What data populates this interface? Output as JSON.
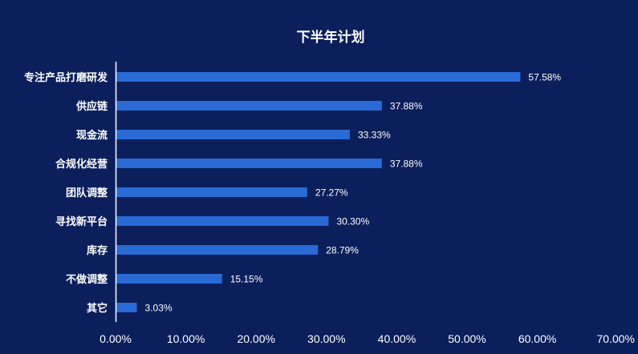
{
  "colors": {
    "background": "#0b1f5c",
    "bar": "#2a6ad4",
    "axis": "#ffffff",
    "text": "#ffffff"
  },
  "chart_data": {
    "type": "bar",
    "orientation": "horizontal",
    "title": "下半年计划",
    "categories": [
      "专注产品打磨研发",
      "供应链",
      "现金流",
      "合规化经营",
      "团队调整",
      "寻找新平台",
      "库存",
      "不做调整",
      "其它"
    ],
    "values": [
      57.58,
      37.88,
      33.33,
      37.88,
      27.27,
      30.3,
      28.79,
      15.15,
      3.03
    ],
    "value_labels": [
      "57.58%",
      "37.88%",
      "33.33%",
      "37.88%",
      "27.27%",
      "30.30%",
      "28.79%",
      "15.15%",
      "3.03%"
    ],
    "xlim": [
      0,
      70
    ],
    "x_ticks": [
      0,
      10,
      20,
      30,
      40,
      50,
      60,
      70
    ],
    "x_tick_labels": [
      "0.00%",
      "10.00%",
      "20.00%",
      "30.00%",
      "40.00%",
      "50.00%",
      "60.00%",
      "70.00%"
    ],
    "grid": false,
    "legend": "none"
  }
}
